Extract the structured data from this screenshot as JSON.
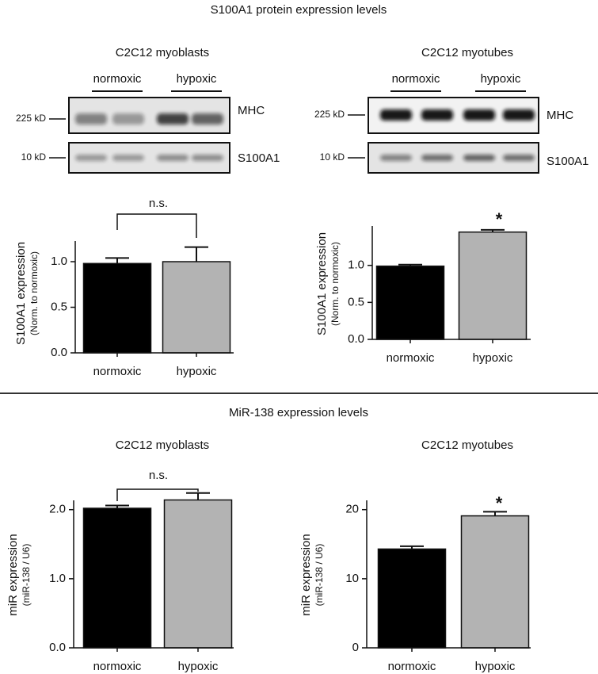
{
  "sections": [
    {
      "title": "S100A1 protein expression levels"
    },
    {
      "title": "MiR-138 expression levels"
    }
  ],
  "blots": [
    {
      "title": "C2C12 myoblasts",
      "groups": [
        "normoxic",
        "hypoxic"
      ],
      "markers": [
        "225 kD",
        "10 kD"
      ],
      "bands": [
        "MHC",
        "S100A1"
      ]
    },
    {
      "title": "C2C12 myotubes",
      "groups": [
        "normoxic",
        "hypoxic"
      ],
      "markers": [
        "225 kD",
        "10 kD"
      ],
      "bands": [
        "MHC",
        "S100A1"
      ]
    }
  ],
  "chart_data": [
    {
      "type": "bar",
      "ylabel": "S100A1 expression",
      "ylabel_sub": "(Norm. to normoxic)",
      "categories": [
        "normoxic",
        "hypoxic"
      ],
      "values": [
        0.98,
        1.0
      ],
      "errors": [
        0.06,
        0.16
      ],
      "colors": [
        "#000000",
        "#b3b3b3"
      ],
      "ylim": [
        0,
        1.2
      ],
      "yticks": [
        {
          "value": 0,
          "label": "0.0"
        },
        {
          "value": 0.5,
          "label": "0.5"
        },
        {
          "value": 1,
          "label": "1.0"
        }
      ],
      "annotation": "n.s."
    },
    {
      "type": "bar",
      "ylabel": "S100A1 expression",
      "ylabel_sub": "(Norm. to normoxic)",
      "categories": [
        "normoxic",
        "hypoxic"
      ],
      "values": [
        0.99,
        1.45
      ],
      "errors": [
        0.02,
        0.03
      ],
      "colors": [
        "#000000",
        "#b3b3b3"
      ],
      "ylim": [
        0,
        1.5
      ],
      "yticks": [
        {
          "value": 0,
          "label": "0.0"
        },
        {
          "value": 0.5,
          "label": "0.5"
        },
        {
          "value": 1,
          "label": "1.0"
        }
      ],
      "annotation": "*"
    },
    {
      "type": "bar",
      "title": "C2C12 myoblasts",
      "ylabel": "miR expression",
      "ylabel_sub": "(miR-138 / U6)",
      "categories": [
        "normoxic",
        "hypoxic"
      ],
      "values": [
        2.02,
        2.14
      ],
      "errors": [
        0.04,
        0.1
      ],
      "colors": [
        "#000000",
        "#b3b3b3"
      ],
      "ylim": [
        0,
        2.1
      ],
      "yticks": [
        {
          "value": 0,
          "label": "0.0"
        },
        {
          "value": 1,
          "label": "1.0"
        },
        {
          "value": 2,
          "label": "2.0"
        }
      ],
      "annotation": "n.s."
    },
    {
      "type": "bar",
      "title": "C2C12 myotubes",
      "ylabel": "miR expression",
      "ylabel_sub": "(miR-138 / U6)",
      "categories": [
        "normoxic",
        "hypoxic"
      ],
      "values": [
        14.3,
        19.1
      ],
      "errors": [
        0.4,
        0.6
      ],
      "colors": [
        "#000000",
        "#b3b3b3"
      ],
      "ylim": [
        0,
        21
      ],
      "yticks": [
        0,
        10,
        20
      ],
      "annotation": "*"
    }
  ]
}
